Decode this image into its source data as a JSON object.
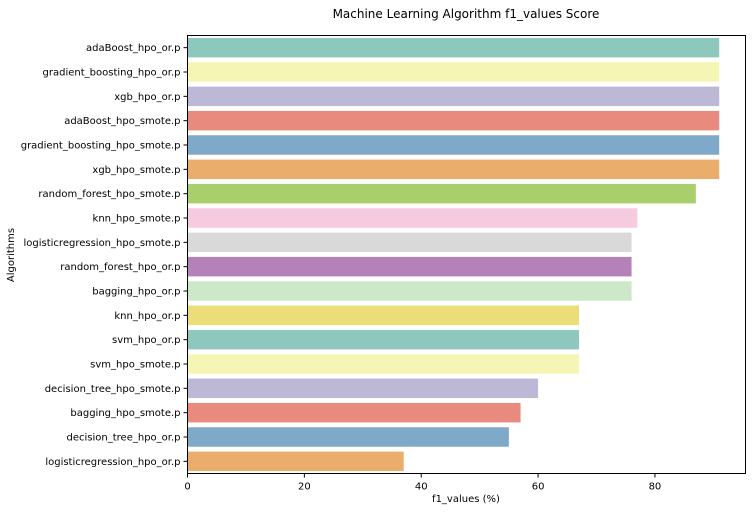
{
  "chart_data": {
    "type": "bar",
    "orientation": "horizontal",
    "title": "Machine Learning Algorithm f1_values Score",
    "xlabel": "f1_values (%)",
    "ylabel": "Algorithms",
    "xlim": [
      0,
      95.5
    ],
    "xticks": [
      0,
      20,
      40,
      60,
      80
    ],
    "xtick_labels": [
      "0",
      "20",
      "40",
      "60",
      "80"
    ],
    "grid": false,
    "categories": [
      "adaBoost_hpo_or.p",
      "gradient_boosting_hpo_or.p",
      "xgb_hpo_or.p",
      "adaBoost_hpo_smote.p",
      "gradient_boosting_hpo_smote.p",
      "xgb_hpo_smote.p",
      "random_forest_hpo_smote.p",
      "knn_hpo_smote.p",
      "logisticregression_hpo_smote.p",
      "random_forest_hpo_or.p",
      "bagging_hpo_or.p",
      "knn_hpo_or.p",
      "svm_hpo_or.p",
      "svm_hpo_smote.p",
      "decision_tree_hpo_smote.p",
      "bagging_hpo_smote.p",
      "decision_tree_hpo_or.p",
      "logisticregression_hpo_or.p"
    ],
    "values": [
      91,
      91,
      91,
      91,
      91,
      91,
      87,
      77,
      76,
      76,
      76,
      67,
      67,
      67,
      60,
      57,
      55,
      37
    ],
    "colors": [
      "#8dc7bd",
      "#f6f6b4",
      "#bcb8d6",
      "#e98a7e",
      "#7fa9c9",
      "#ebad6c",
      "#a8cf6c",
      "#f6cbe0",
      "#d9d9d9",
      "#b581b9",
      "#cde7c9",
      "#ecdd79",
      "#8dc7bd",
      "#f6f6b4",
      "#bcb8d6",
      "#e98a7e",
      "#7fa9c9",
      "#ebad6c"
    ]
  }
}
